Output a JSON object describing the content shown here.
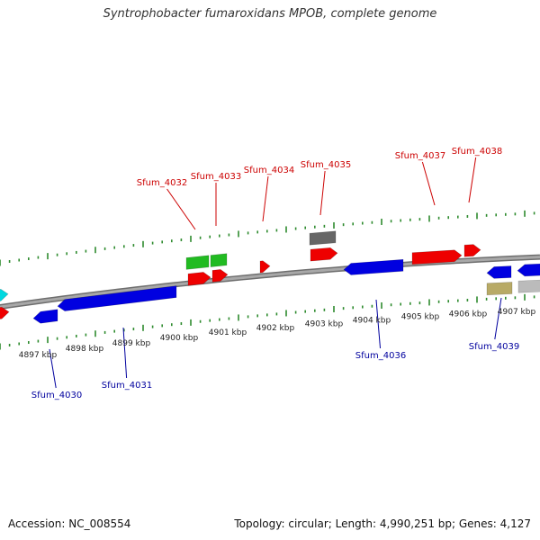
{
  "title": "Syntrophobacter fumaroxidans MPOB, complete genome",
  "accession": "Accession: NC_008554",
  "summary": "Topology: circular; Length: 4,990,251 bp; Genes: 4,127",
  "colors": {
    "backbone": "#888888",
    "tick": "#2e8b2e",
    "forward_label": "#cc0000",
    "reverse_label": "#00009e"
  },
  "kbp_labels": [
    "4897 kbp",
    "4898 kbp",
    "4899 kbp",
    "4900 kbp",
    "4901 kbp",
    "4902 kbp",
    "4903 kbp",
    "4904 kbp",
    "4905 kbp",
    "4906 kbp",
    "4907 kbp"
  ],
  "gene_labels": {
    "top": [
      "Sfum_4032",
      "Sfum_4033",
      "Sfum_4034",
      "Sfum_4035",
      "Sfum_4037",
      "Sfum_4038"
    ],
    "bottom": [
      "Sfum_4030",
      "Sfum_4031",
      "Sfum_4036",
      "Sfum_4039"
    ]
  },
  "features": [
    {
      "name": "cyan-gene",
      "color": "#00d8e0",
      "dir": "right"
    },
    {
      "name": "red-gene-left",
      "color": "#ee0000",
      "dir": "right"
    },
    {
      "name": "blue-gene-a",
      "color": "#0000e0",
      "dir": "left"
    },
    {
      "name": "blue-gene-b",
      "color": "#0000e0",
      "dir": "left"
    },
    {
      "name": "green-gene-a",
      "color": "#22bb22",
      "dir": "none"
    },
    {
      "name": "green-gene-b",
      "color": "#22bb22",
      "dir": "none"
    },
    {
      "name": "red-gene-a",
      "color": "#ee0000",
      "dir": "right"
    },
    {
      "name": "red-gene-b",
      "color": "#ee0000",
      "dir": "right"
    },
    {
      "name": "red-gene-c",
      "color": "#ee0000",
      "dir": "right"
    },
    {
      "name": "gray-gene",
      "color": "#666666",
      "dir": "none"
    },
    {
      "name": "red-gene-d",
      "color": "#ee0000",
      "dir": "right"
    },
    {
      "name": "blue-gene-c",
      "color": "#0000e0",
      "dir": "left"
    },
    {
      "name": "red-gene-e",
      "color": "#ee0000",
      "dir": "right"
    },
    {
      "name": "red-gene-f",
      "color": "#ee0000",
      "dir": "right"
    },
    {
      "name": "blue-gene-d",
      "color": "#0000e0",
      "dir": "left"
    },
    {
      "name": "olive-gene",
      "color": "#b8aa66",
      "dir": "none"
    },
    {
      "name": "blue-gene-e",
      "color": "#0000e0",
      "dir": "left"
    },
    {
      "name": "gray-gene-b",
      "color": "#bbbbbb",
      "dir": "none"
    }
  ]
}
